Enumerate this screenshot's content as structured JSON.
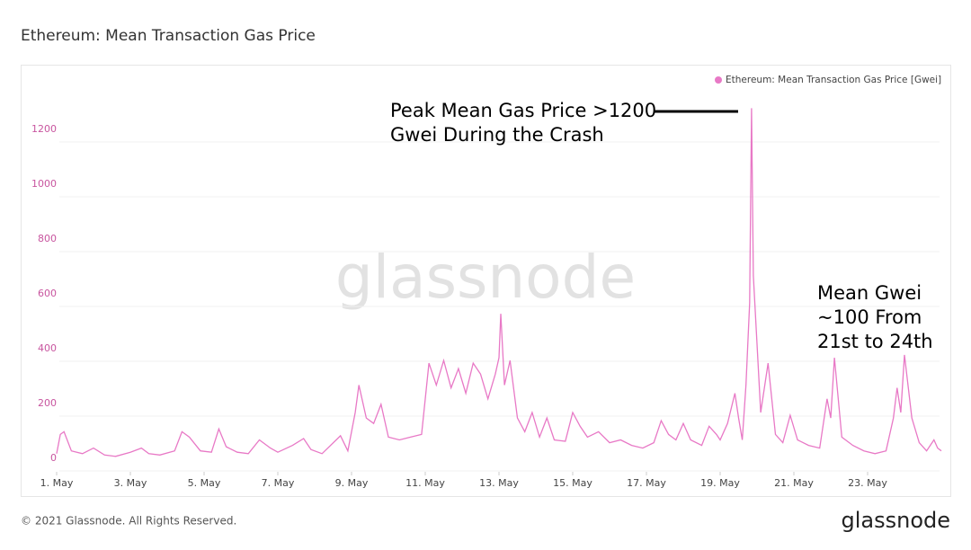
{
  "chart_data": {
    "type": "line",
    "title": "Ethereum: Mean Transaction Gas Price",
    "watermark": "glassnode",
    "annotations": [
      [
        "Peak Mean Gas Price >1200",
        "Gwei During the Crash"
      ],
      [
        "Mean Gwei",
        "~100 From",
        "21st to 24th"
      ]
    ],
    "x": [
      1,
      1.1,
      1.2,
      1.4,
      1.7,
      2,
      2.3,
      2.6,
      3,
      3.3,
      3.5,
      3.8,
      4.2,
      4.4,
      4.6,
      4.9,
      5.2,
      5.4,
      5.6,
      5.9,
      6.2,
      6.5,
      6.8,
      7,
      7.4,
      7.7,
      7.9,
      8.2,
      8.7,
      8.9,
      9.1,
      9.2,
      9.4,
      9.6,
      9.8,
      10,
      10.3,
      10.6,
      10.9,
      11,
      11.1,
      11.3,
      11.5,
      11.7,
      11.9,
      12.1,
      12.3,
      12.5,
      12.7,
      12.9,
      13,
      13.05,
      13.15,
      13.3,
      13.5,
      13.7,
      13.9,
      14.1,
      14.3,
      14.5,
      14.8,
      15,
      15.2,
      15.4,
      15.7,
      16,
      16.3,
      16.6,
      16.9,
      17.2,
      17.4,
      17.6,
      17.8,
      18,
      18.2,
      18.5,
      18.7,
      18.9,
      19,
      19.2,
      19.4,
      19.5,
      19.6,
      19.7,
      19.8,
      19.85,
      19.9,
      20,
      20.1,
      20.3,
      20.5,
      20.7,
      20.9,
      21.1,
      21.4,
      21.7,
      21.9,
      22,
      22.1,
      22.3,
      22.6,
      22.9,
      23.2,
      23.5,
      23.7,
      23.8,
      23.9,
      24,
      24.2,
      24.4,
      24.6,
      24.8,
      24.9,
      25
    ],
    "series": [
      {
        "name": "Ethereum: Mean Transaction Gas Price [Gwei]",
        "color": "#e879c6",
        "values": [
          50,
          120,
          130,
          60,
          50,
          70,
          45,
          40,
          55,
          70,
          50,
          45,
          60,
          130,
          110,
          60,
          55,
          140,
          75,
          55,
          50,
          100,
          70,
          55,
          80,
          105,
          65,
          50,
          115,
          60,
          200,
          300,
          180,
          160,
          230,
          110,
          100,
          110,
          120,
          250,
          380,
          300,
          390,
          290,
          360,
          270,
          380,
          340,
          250,
          340,
          400,
          560,
          300,
          390,
          180,
          130,
          200,
          110,
          180,
          100,
          95,
          200,
          150,
          110,
          130,
          90,
          100,
          80,
          70,
          90,
          170,
          120,
          100,
          160,
          100,
          80,
          150,
          120,
          100,
          160,
          270,
          180,
          100,
          300,
          600,
          1310,
          700,
          450,
          200,
          380,
          120,
          90,
          190,
          100,
          80,
          70,
          250,
          180,
          400,
          110,
          80,
          60,
          50,
          60,
          180,
          290,
          200,
          410,
          180,
          90,
          60,
          100,
          70,
          60
        ]
      }
    ],
    "xlim": [
      1,
      25
    ],
    "xticks": [
      {
        "value": 1,
        "label": "1. May"
      },
      {
        "value": 3,
        "label": "3. May"
      },
      {
        "value": 5,
        "label": "5. May"
      },
      {
        "value": 7,
        "label": "7. May"
      },
      {
        "value": 9,
        "label": "9. May"
      },
      {
        "value": 11,
        "label": "11. May"
      },
      {
        "value": 13,
        "label": "13. May"
      },
      {
        "value": 15,
        "label": "15. May"
      },
      {
        "value": 17,
        "label": "17. May"
      },
      {
        "value": 19,
        "label": "19. May"
      },
      {
        "value": 21,
        "label": "21. May"
      },
      {
        "value": 23,
        "label": "23. May"
      }
    ],
    "ylim": [
      0,
      1400
    ],
    "yticks": [
      0,
      200,
      400,
      600,
      800,
      1000,
      1200
    ],
    "grid": true,
    "legend": "top-right"
  },
  "footer": {
    "copyright": "© 2021 Glassnode. All Rights Reserved.",
    "logo": "glassnode"
  }
}
